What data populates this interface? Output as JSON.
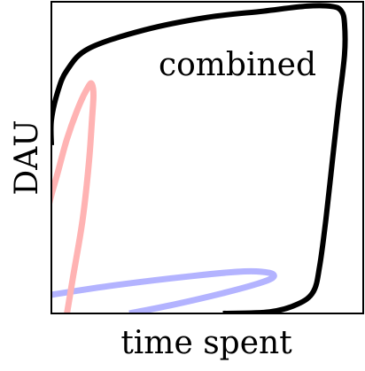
{
  "chart_data": {
    "type": "line",
    "xlabel": "time spent",
    "ylabel": "DAU",
    "xlim": [
      0,
      1
    ],
    "ylim": [
      0,
      1
    ],
    "ticks": false,
    "grid": false,
    "series": [
      {
        "name": "combined",
        "color": "#000000",
        "points": [
          [
            0.0,
            0.54
          ],
          [
            0.0,
            0.62
          ],
          [
            0.02,
            0.71
          ],
          [
            0.05,
            0.78
          ],
          [
            0.12,
            0.85
          ],
          [
            0.3,
            0.91
          ],
          [
            0.5,
            0.95
          ],
          [
            0.68,
            0.97
          ],
          [
            0.82,
            0.986
          ],
          [
            0.9,
            0.985
          ],
          [
            0.93,
            0.97
          ],
          [
            0.94,
            0.93
          ],
          [
            0.94,
            0.83
          ],
          [
            0.92,
            0.66
          ],
          [
            0.9,
            0.48
          ],
          [
            0.88,
            0.3
          ],
          [
            0.86,
            0.15
          ],
          [
            0.84,
            0.07
          ],
          [
            0.79,
            0.03
          ],
          [
            0.7,
            0.005
          ],
          [
            0.55,
            0.0
          ]
        ]
      },
      {
        "color": "#ffb3b3",
        "points": [
          [
            0.05,
            0.0
          ],
          [
            0.07,
            0.12
          ],
          [
            0.1,
            0.3
          ],
          [
            0.12,
            0.48
          ],
          [
            0.13,
            0.62
          ],
          [
            0.135,
            0.7
          ],
          [
            0.13,
            0.735
          ],
          [
            0.12,
            0.73
          ],
          [
            0.09,
            0.67
          ],
          [
            0.05,
            0.56
          ],
          [
            0.02,
            0.45
          ],
          [
            0.0,
            0.38
          ],
          [
            -0.02,
            0.3
          ]
        ]
      },
      {
        "color": "#b3b3ff",
        "points": [
          [
            0.0,
            0.06
          ],
          [
            0.2,
            0.09
          ],
          [
            0.45,
            0.12
          ],
          [
            0.62,
            0.135
          ],
          [
            0.7,
            0.13
          ],
          [
            0.71,
            0.115
          ],
          [
            0.66,
            0.095
          ],
          [
            0.55,
            0.065
          ],
          [
            0.4,
            0.03
          ],
          [
            0.25,
            0.0
          ]
        ]
      }
    ],
    "annotations": [
      {
        "text": "combined"
      }
    ]
  }
}
